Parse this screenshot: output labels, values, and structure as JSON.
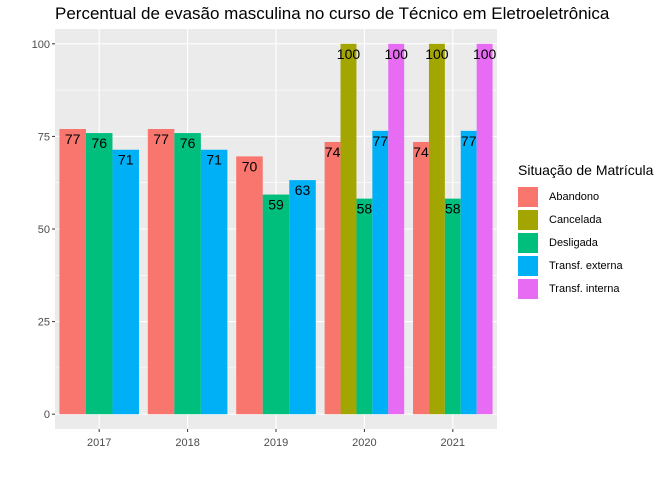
{
  "chart_data": {
    "type": "bar",
    "title": "Percentual de evasão masculina no curso de Técnico em Eletroeletrônica",
    "xlabel": "",
    "ylabel": "",
    "ylim": [
      -4,
      104
    ],
    "yticks": [
      0,
      25,
      50,
      75,
      100
    ],
    "grid": true,
    "legend": {
      "title": "Situação de Matrícula",
      "position": "right"
    },
    "categories": [
      "2017",
      "2018",
      "2019",
      "2020",
      "2021"
    ],
    "series": [
      {
        "name": "Abandono",
        "color": "#F8766D",
        "values": [
          77.0,
          77.0,
          69.6,
          73.5,
          73.5
        ],
        "labels": [
          "77",
          "77",
          "70",
          "74",
          "74"
        ]
      },
      {
        "name": "Cancelada",
        "color": "#A3A500",
        "values": [
          null,
          null,
          null,
          100,
          100
        ],
        "labels": [
          "",
          "",
          "",
          "100",
          "100"
        ]
      },
      {
        "name": "Desligada",
        "color": "#00BF7D",
        "values": [
          75.9,
          75.9,
          59.3,
          58.2,
          58.2
        ],
        "labels": [
          "76",
          "76",
          "59",
          "58",
          "58"
        ]
      },
      {
        "name": "Transf. externa",
        "color": "#00B0F6",
        "values": [
          71.4,
          71.4,
          63.2,
          76.5,
          76.5
        ],
        "labels": [
          "71",
          "71",
          "63",
          "77",
          "77"
        ]
      },
      {
        "name": "Transf. interna",
        "color": "#E76BF3",
        "values": [
          null,
          null,
          null,
          100,
          100
        ],
        "labels": [
          "",
          "",
          "",
          "100",
          "100"
        ]
      }
    ]
  }
}
